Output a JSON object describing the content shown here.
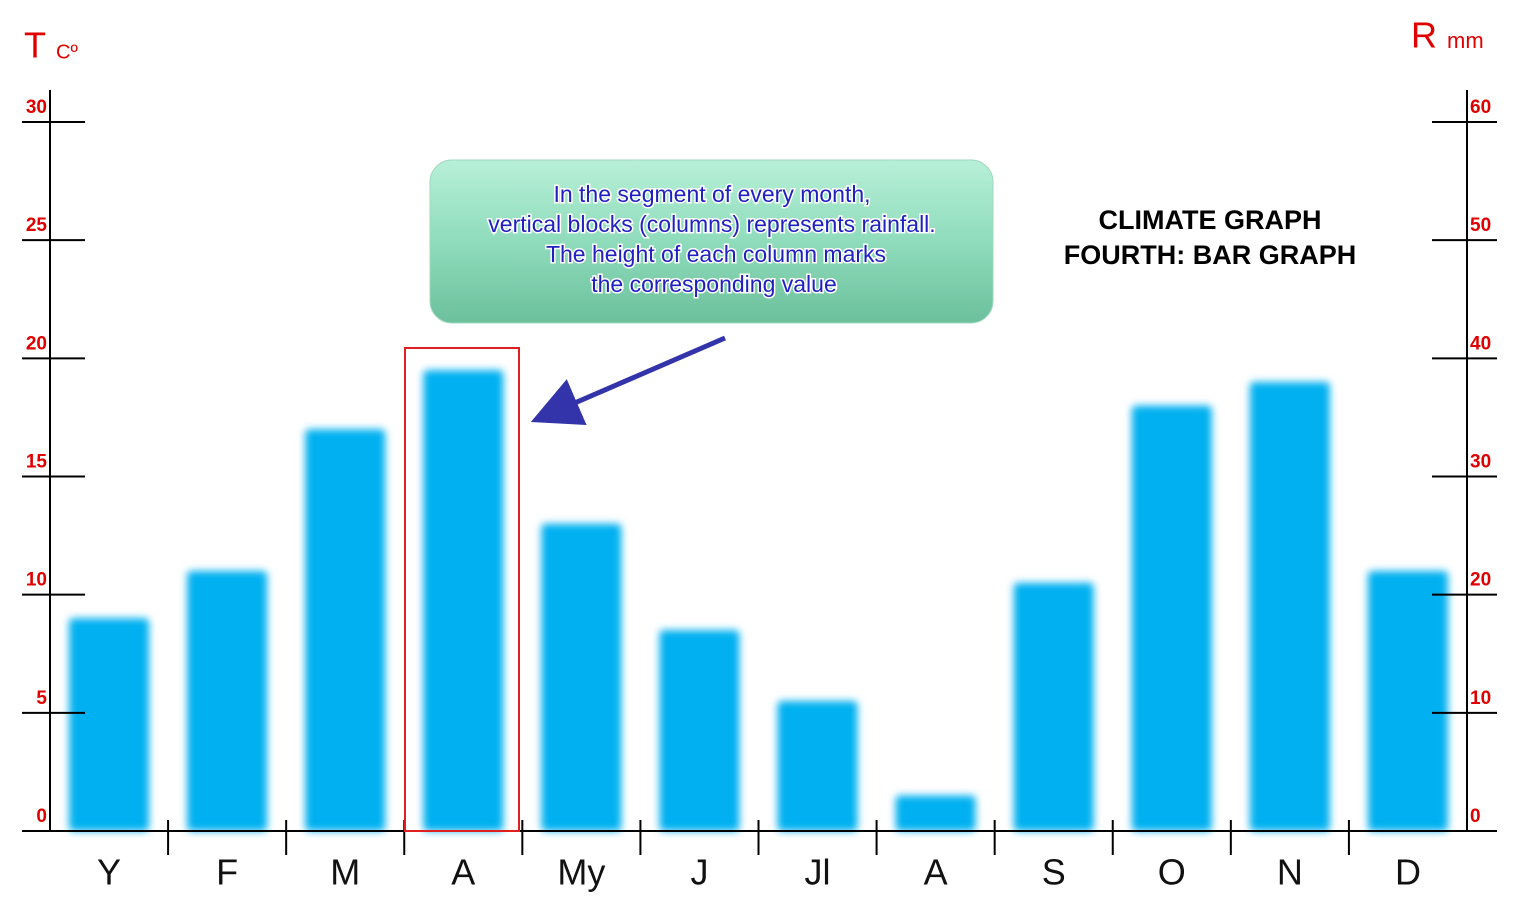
{
  "chart_data": {
    "type": "bar",
    "title": "CLIMATE  GRAPH",
    "subtitle": "FOURTH: BAR GRAPH",
    "ylabel": "T",
    "ylabel_unit": "Cº",
    "y2label": "R",
    "y2label_unit": "mm",
    "annotation": [
      "In the  segment of every month,",
      "vertical blocks (columns) represents rainfall.",
      "The height of each column marks",
      "the corresponding value"
    ],
    "categories": [
      "Y",
      "F",
      "M",
      "A",
      "My",
      "J",
      "Jl",
      "A",
      "S",
      "O",
      "N",
      "D"
    ],
    "series": [
      {
        "axis": "y2",
        "color": "#00b0f0",
        "values": [
          18,
          22,
          34,
          39,
          26,
          17,
          11,
          3,
          21,
          36,
          38,
          22
        ]
      }
    ],
    "ylim": [
      0,
      30
    ],
    "yticks": [
      0,
      5,
      10,
      15,
      20,
      25,
      30
    ],
    "y2lim": [
      0,
      60
    ],
    "y2ticks": [
      0,
      10,
      20,
      30,
      40,
      50,
      60
    ]
  }
}
